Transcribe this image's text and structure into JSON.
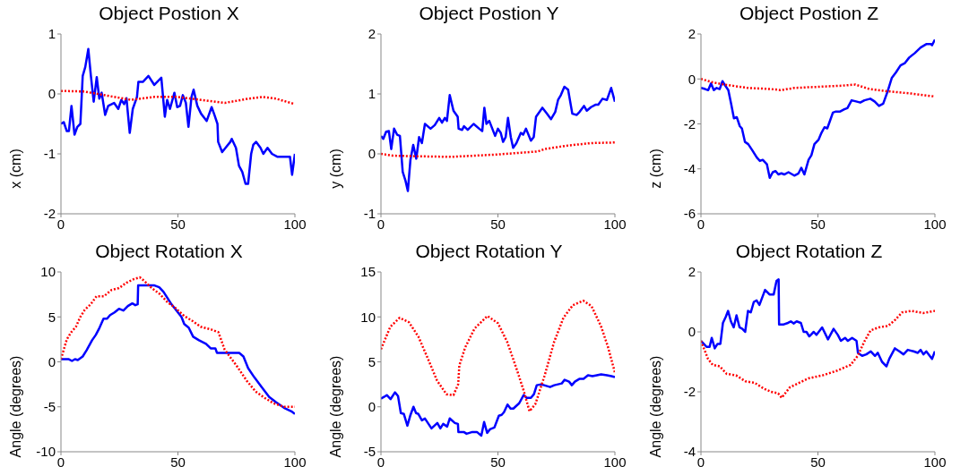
{
  "chart_data": [
    {
      "type": "line",
      "title": "Object Postion X",
      "ylabel": "x (cm)",
      "xlim": [
        0,
        100
      ],
      "xticks": [
        0,
        50,
        100
      ],
      "ylim": [
        -2,
        1
      ],
      "yticks": [
        -2,
        -1,
        0,
        1
      ],
      "grid": false,
      "legend": false,
      "series": [
        {
          "color": "#0000ff",
          "line_style": "solid",
          "x": [
            0,
            1.2,
            2.5,
            3.4,
            4.5,
            5.8,
            7.0,
            8.3,
            9.3,
            10.4,
            11.7,
            12.8,
            14.0,
            15.3,
            16.4,
            17.4,
            18.9,
            20.2,
            22.7,
            24.5,
            25.8,
            27.0,
            28.0,
            29.4,
            30.7,
            32.5,
            33.1,
            35.0,
            37.4,
            39.9,
            42.9,
            44.4,
            45.4,
            46.6,
            48.5,
            49.7,
            50.9,
            52.1,
            53.4,
            54.5,
            55.8,
            56.7,
            58.3,
            59.9,
            62.3,
            64.4,
            65.6,
            66.9,
            67.2,
            68.9,
            72.4,
            73.0,
            74.8,
            76.1,
            77.5,
            78.9,
            80.0,
            81.3,
            82.2,
            83.4,
            85.3,
            86.5,
            88.3,
            90.2,
            92.6,
            94.5,
            96.9,
            97.9,
            98.8,
            100
          ],
          "values": [
            -0.5,
            -0.47,
            -0.62,
            -0.62,
            -0.2,
            -0.68,
            -0.55,
            -0.5,
            0.3,
            0.45,
            0.75,
            0.3,
            -0.13,
            0.28,
            -0.08,
            0.02,
            -0.35,
            -0.2,
            -0.15,
            -0.25,
            -0.1,
            -0.17,
            -0.07,
            -0.65,
            -0.25,
            -0.05,
            0.2,
            0.2,
            0.3,
            0.15,
            0.27,
            -0.38,
            -0.1,
            -0.25,
            0.02,
            -0.22,
            -0.2,
            -0.02,
            -0.15,
            -0.55,
            -0.05,
            0.07,
            -0.2,
            -0.33,
            -0.45,
            -0.22,
            -0.35,
            -0.5,
            -0.8,
            -0.97,
            -0.8,
            -0.75,
            -0.9,
            -1.2,
            -1.3,
            -1.5,
            -1.5,
            -1.0,
            -0.85,
            -0.8,
            -0.9,
            -1.0,
            -0.9,
            -1.0,
            -1.05,
            -1.05,
            -1.05,
            -1.05,
            -1.35,
            -1.0
          ]
        },
        {
          "color": "#ff0000",
          "line_style": "dotted",
          "x": [
            0,
            10,
            20,
            30,
            40,
            50,
            60,
            70,
            80,
            86,
            92,
            100
          ],
          "values": [
            0.05,
            0.04,
            -0.03,
            -0.1,
            -0.05,
            -0.05,
            -0.1,
            -0.15,
            -0.08,
            -0.05,
            -0.08,
            -0.17
          ]
        }
      ]
    },
    {
      "type": "line",
      "title": "Object Postion Y",
      "ylabel": "y (cm)",
      "xlim": [
        0,
        100
      ],
      "xticks": [
        0,
        50,
        100
      ],
      "ylim": [
        -1,
        2
      ],
      "yticks": [
        -1,
        0,
        1,
        2
      ],
      "grid": false,
      "legend": false,
      "series": [
        {
          "color": "#0000ff",
          "line_style": "solid",
          "x": [
            0,
            1.0,
            2.2,
            3.4,
            4.4,
            5.6,
            6.9,
            8.1,
            9.3,
            10.5,
            11.5,
            12.6,
            13.8,
            15.1,
            16.3,
            17.5,
            18.8,
            21.2,
            23.0,
            24.9,
            26.1,
            27.3,
            28.2,
            29.4,
            31.0,
            32.8,
            33.2,
            34.7,
            35.5,
            37.1,
            39.6,
            42.0,
            43.3,
            44.2,
            45.1,
            46.3,
            48.8,
            50,
            51.2,
            52.2,
            53.3,
            54.3,
            55.5,
            56.5,
            57.9,
            59.8,
            60.8,
            62.0,
            64.1,
            65.3,
            66.3,
            69.0,
            70.8,
            72.7,
            74.5,
            75.7,
            76.9,
            78.4,
            80.0,
            81.8,
            83.7,
            84.9,
            86.8,
            88.0,
            89.8,
            91.7,
            92.9,
            94.7,
            96.6,
            98.4,
            100
          ],
          "values": [
            0.3,
            0.25,
            0.37,
            0.38,
            0.08,
            0.42,
            0.32,
            0.3,
            -0.3,
            -0.45,
            -0.62,
            -0.1,
            0.15,
            -0.08,
            0.28,
            0.18,
            0.5,
            0.42,
            0.48,
            0.6,
            0.52,
            0.6,
            0.55,
            0.98,
            0.72,
            0.62,
            0.42,
            0.4,
            0.46,
            0.4,
            0.5,
            0.42,
            0.38,
            0.77,
            0.5,
            0.55,
            0.3,
            0.42,
            0.35,
            0.2,
            0.28,
            0.6,
            0.28,
            0.1,
            0.18,
            0.35,
            0.32,
            0.42,
            0.22,
            0.28,
            0.62,
            0.77,
            0.68,
            0.58,
            0.7,
            0.9,
            0.98,
            1.12,
            1.07,
            0.67,
            0.65,
            0.7,
            0.8,
            0.72,
            0.78,
            0.82,
            0.82,
            0.92,
            0.9,
            1.1,
            0.87
          ]
        },
        {
          "color": "#ff0000",
          "line_style": "dotted",
          "x": [
            0,
            5,
            15,
            30,
            40,
            50,
            60,
            67,
            70,
            80,
            90,
            100
          ],
          "values": [
            0,
            -0.03,
            -0.04,
            -0.05,
            -0.03,
            -0.01,
            0.02,
            0.04,
            0.08,
            0.14,
            0.18,
            0.19
          ]
        }
      ]
    },
    {
      "type": "line",
      "title": "Object Postion Z",
      "ylabel": "z (cm)",
      "xlim": [
        0,
        100
      ],
      "xticks": [
        0,
        50,
        100
      ],
      "ylim": [
        -6,
        2
      ],
      "yticks": [
        -6,
        -4,
        -2,
        0,
        2
      ],
      "grid": false,
      "legend": false,
      "series": [
        {
          "color": "#0000ff",
          "line_style": "solid",
          "x": [
            0,
            1.8,
            3.1,
            4.3,
            5.5,
            6.7,
            8.0,
            9.2,
            10.4,
            11.7,
            12.9,
            14.1,
            15.3,
            16.6,
            17.5,
            18.8,
            20.2,
            22.1,
            23.9,
            25.2,
            26.4,
            28.2,
            29.4,
            30.7,
            31.9,
            33.1,
            34.4,
            35.6,
            37.4,
            39.9,
            41.7,
            42.9,
            44.2,
            46.0,
            47.2,
            48.5,
            50.3,
            51.5,
            52.8,
            54.0,
            55.2,
            56.4,
            57.7,
            59.5,
            61.3,
            62.6,
            64.4,
            66.3,
            68.1,
            69.9,
            72.4,
            74.2,
            76.1,
            77.9,
            79.8,
            81.6,
            83.4,
            85.3,
            87.1,
            89.0,
            91.4,
            93.9,
            96.3,
            98.2,
            98.8,
            100
          ],
          "values": [
            -0.4,
            -0.45,
            -0.5,
            -0.2,
            -0.5,
            -0.4,
            -0.45,
            -0.1,
            -0.3,
            -0.5,
            -1.1,
            -1.75,
            -1.7,
            -2.1,
            -2.2,
            -2.8,
            -2.9,
            -3.2,
            -3.5,
            -3.65,
            -3.6,
            -3.8,
            -4.4,
            -4.15,
            -4.1,
            -4.25,
            -4.2,
            -4.25,
            -4.15,
            -4.3,
            -4.2,
            -3.95,
            -4.25,
            -3.6,
            -3.4,
            -2.9,
            -2.7,
            -2.4,
            -2.15,
            -2.2,
            -1.85,
            -1.5,
            -1.45,
            -1.45,
            -1.35,
            -1.3,
            -0.95,
            -1.0,
            -1.05,
            -0.95,
            -0.88,
            -1.0,
            -1.2,
            -1.1,
            -0.55,
            0.05,
            0.3,
            0.6,
            0.7,
            0.95,
            1.15,
            1.4,
            1.55,
            1.55,
            1.5,
            1.75
          ]
        },
        {
          "color": "#ff0000",
          "line_style": "dotted",
          "x": [
            0,
            5,
            10,
            20,
            30,
            34,
            40,
            50,
            60,
            66,
            72,
            80,
            90,
            100
          ],
          "values": [
            0,
            -0.15,
            -0.25,
            -0.4,
            -0.45,
            -0.5,
            -0.4,
            -0.35,
            -0.3,
            -0.25,
            -0.45,
            -0.55,
            -0.65,
            -0.78
          ]
        }
      ]
    },
    {
      "type": "line",
      "title": "Object Rotation X",
      "ylabel": "Angle (degrees)",
      "xlim": [
        0,
        100
      ],
      "xticks": [
        0,
        50,
        100
      ],
      "ylim": [
        -10,
        10
      ],
      "yticks": [
        -10,
        -5,
        0,
        5,
        10
      ],
      "grid": false,
      "legend": false,
      "series": [
        {
          "color": "#0000ff",
          "line_style": "solid",
          "x": [
            0,
            3.2,
            4.7,
            6,
            7.2,
            9.3,
            11,
            13.3,
            14.9,
            16.5,
            18.2,
            19.7,
            21,
            22.9,
            24.8,
            26.7,
            28.6,
            30.5,
            31.8,
            32.8,
            33,
            36.2,
            40,
            42,
            43.8,
            47,
            51.5,
            52.7,
            54.6,
            56.5,
            59,
            62,
            64,
            66,
            66.7,
            71.8,
            76.2,
            78,
            80,
            82.6,
            85.8,
            89,
            92,
            95.3,
            98.5,
            100
          ],
          "values": [
            0.3,
            0.3,
            0.1,
            0.3,
            0.2,
            0.6,
            1.3,
            2.4,
            3.0,
            3.8,
            4.8,
            4.8,
            5.2,
            5.5,
            5.9,
            5.7,
            6.2,
            6.5,
            6.3,
            6.4,
            8.5,
            8.5,
            8.5,
            8.3,
            7.8,
            6.5,
            5.0,
            4.2,
            3.8,
            2.8,
            2.4,
            2.0,
            1.5,
            1.5,
            1.0,
            1.0,
            1.0,
            0.6,
            -0.7,
            -1.7,
            -2.8,
            -3.9,
            -4.5,
            -5.1,
            -5.5,
            -5.8
          ]
        },
        {
          "color": "#ff0000",
          "line_style": "dotted",
          "x": [
            0,
            2.5,
            4.4,
            6.4,
            8.3,
            10.2,
            12.7,
            15.2,
            18.4,
            21.6,
            24.8,
            28,
            31.1,
            33.7,
            35.6,
            38.8,
            42,
            45.7,
            48.9,
            52.7,
            56.5,
            59.7,
            64.2,
            67.3,
            69.9,
            72.4,
            75,
            79.4,
            83.2,
            87,
            90.8,
            95.3,
            100
          ],
          "values": [
            0.3,
            2.5,
            3.3,
            3.9,
            5.0,
            5.8,
            6.4,
            7.3,
            7.3,
            8.0,
            8.2,
            8.8,
            9.2,
            9.4,
            9.0,
            8.2,
            7.6,
            6.6,
            6.0,
            5.1,
            4.5,
            3.9,
            3.6,
            3.3,
            1.4,
            0.5,
            -0.4,
            -2.1,
            -3.3,
            -4.0,
            -4.6,
            -5.0,
            -5.0
          ]
        }
      ]
    },
    {
      "type": "line",
      "title": "Object Rotation Y",
      "ylabel": "Angle (degrees)",
      "xlim": [
        0,
        100
      ],
      "xticks": [
        0,
        50,
        100
      ],
      "ylim": [
        -5,
        15
      ],
      "yticks": [
        -5,
        0,
        5,
        10,
        15
      ],
      "grid": false,
      "legend": false,
      "series": [
        {
          "color": "#0000ff",
          "line_style": "solid",
          "x": [
            0,
            1.3,
            2.5,
            4.1,
            6,
            7.3,
            8.5,
            9.8,
            11.3,
            12.5,
            13.9,
            15,
            16,
            17.5,
            18.8,
            21.6,
            24.1,
            25.4,
            26.6,
            28.3,
            29.4,
            31.6,
            32.9,
            33.1,
            35.4,
            36.6,
            39.1,
            41,
            42.9,
            44.1,
            45.4,
            46.6,
            48.5,
            50.4,
            51.6,
            52.6,
            54.1,
            55.4,
            56.6,
            59.1,
            61,
            62.3,
            64.1,
            65.4,
            66.6,
            68.5,
            71,
            72.3,
            74.1,
            77.3,
            78.5,
            80.4,
            81.6,
            82.9,
            84.8,
            86.6,
            88.5,
            90.4,
            92.3,
            94.1,
            96.6,
            98.5,
            100
          ],
          "values": [
            0.9,
            1.1,
            1.3,
            0.85,
            1.6,
            1.2,
            -0.7,
            -0.8,
            -2.1,
            -1.0,
            0.0,
            -0.7,
            -0.8,
            -1.5,
            -1.3,
            -2.4,
            -1.8,
            -2.4,
            -1.9,
            -2.2,
            -1.3,
            -1.8,
            -1.9,
            -2.8,
            -2.8,
            -3.0,
            -2.8,
            -2.8,
            -3.2,
            -1.7,
            -2.9,
            -2.5,
            -2.3,
            -1.0,
            -0.9,
            -0.6,
            0.25,
            -0.2,
            -0.2,
            0.4,
            1.3,
            1.0,
            1.0,
            1.4,
            2.4,
            2.5,
            2.3,
            2.2,
            2.4,
            2.6,
            3.0,
            2.8,
            2.4,
            2.8,
            3.1,
            3.1,
            3.5,
            3.4,
            3.5,
            3.6,
            3.5,
            3.4,
            3.3
          ]
        },
        {
          "color": "#ff0000",
          "line_style": "dotted",
          "x": [
            0,
            4,
            8,
            12,
            16,
            20,
            24,
            28,
            31,
            33,
            33.5,
            36,
            40,
            45.5,
            50,
            54,
            58,
            61,
            63.5,
            66,
            70,
            74,
            78,
            82,
            86.5,
            90,
            94,
            97,
            100
          ],
          "values": [
            6.4,
            8.9,
            9.9,
            9.4,
            7.8,
            5.4,
            2.9,
            1.4,
            1.3,
            2.5,
            4.6,
            6.6,
            8.7,
            10.1,
            9.3,
            7.2,
            4.2,
            1.8,
            -0.5,
            0.3,
            3.5,
            7.2,
            9.9,
            11.3,
            11.8,
            11.2,
            9.0,
            6.7,
            3.8
          ]
        }
      ]
    },
    {
      "type": "line",
      "title": "Object Rotation Z",
      "ylabel": "Angle (degrees)",
      "xlim": [
        0,
        100
      ],
      "xticks": [
        0,
        50,
        100
      ],
      "ylim": [
        -4,
        2
      ],
      "yticks": [
        -4,
        -2,
        0,
        2
      ],
      "grid": false,
      "legend": false,
      "series": [
        {
          "color": "#0000ff",
          "line_style": "solid",
          "x": [
            0,
            1.2,
            2.4,
            3.7,
            4.6,
            5.9,
            7.1,
            8.3,
            9.4,
            10.6,
            11.6,
            12.8,
            14,
            15.2,
            16.5,
            17.7,
            18.9,
            20.1,
            21.3,
            22.6,
            23.8,
            25,
            27.4,
            29.3,
            31.1,
            32.3,
            33.2,
            33.4,
            35.4,
            37.2,
            38.4,
            39.6,
            40.9,
            42.7,
            43.9,
            45.1,
            46.3,
            48.2,
            49.4,
            51.8,
            54.3,
            56.7,
            58.5,
            59.8,
            61.6,
            62.8,
            64.6,
            66.5,
            67.1,
            68.9,
            70.7,
            72.6,
            74.4,
            75.6,
            77.4,
            79.3,
            80.5,
            82.9,
            84.8,
            86.6,
            88.4,
            90.9,
            92.7,
            93.9,
            95.1,
            96.3,
            98.8,
            100
          ],
          "values": [
            -0.3,
            -0.4,
            -0.5,
            -0.5,
            -0.2,
            -0.55,
            -0.4,
            -0.4,
            0.3,
            0.5,
            0.7,
            0.35,
            0.15,
            0.55,
            0.15,
            0.1,
            0.0,
            0.7,
            0.65,
            1.0,
            1.05,
            0.9,
            1.4,
            1.25,
            1.25,
            1.7,
            1.75,
            0.25,
            0.25,
            0.3,
            0.35,
            0.28,
            0.35,
            0.3,
            0.0,
            0.0,
            -0.15,
            0.0,
            -0.1,
            0.15,
            -0.25,
            0.1,
            -0.1,
            -0.3,
            -0.2,
            -0.3,
            -0.2,
            -0.3,
            -0.7,
            -0.8,
            -0.75,
            -0.65,
            -0.8,
            -0.7,
            -1.0,
            -1.15,
            -0.9,
            -0.55,
            -0.65,
            -0.75,
            -0.6,
            -0.65,
            -0.7,
            -0.6,
            -0.75,
            -0.65,
            -0.9,
            -0.65
          ]
        },
        {
          "color": "#ff0000",
          "line_style": "dotted",
          "x": [
            0,
            3,
            5,
            8,
            11,
            15,
            19,
            23,
            27,
            30,
            33,
            34.5,
            38,
            42,
            46,
            52,
            58,
            64,
            67,
            70,
            72.5,
            76,
            80,
            83,
            86,
            90,
            95,
            100
          ],
          "values": [
            -0.3,
            -0.9,
            -1.1,
            -1.15,
            -1.4,
            -1.45,
            -1.65,
            -1.7,
            -1.9,
            -2.0,
            -2.05,
            -2.2,
            -1.85,
            -1.7,
            -1.55,
            -1.45,
            -1.3,
            -1.1,
            -0.8,
            -0.3,
            0.05,
            0.15,
            0.2,
            0.4,
            0.65,
            0.7,
            0.63,
            0.7
          ]
        }
      ]
    }
  ]
}
